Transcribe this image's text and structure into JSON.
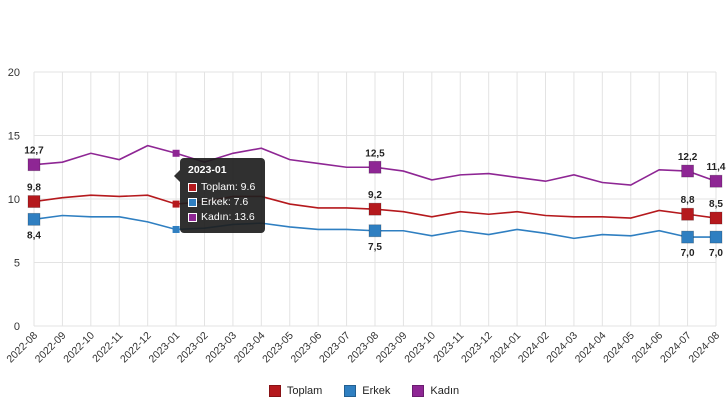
{
  "chart_data": {
    "type": "line",
    "categories": [
      "2022-08",
      "2022-09",
      "2022-10",
      "2022-11",
      "2022-12",
      "2023-01",
      "2023-02",
      "2023-03",
      "2023-04",
      "2023-05",
      "2023-06",
      "2023-07",
      "2023-08",
      "2023-09",
      "2023-10",
      "2023-11",
      "2023-12",
      "2024-01",
      "2024-02",
      "2024-03",
      "2024-04",
      "2024-05",
      "2024-06",
      "2024-07",
      "2024-08"
    ],
    "ylim": [
      0,
      20
    ],
    "yticks": [
      0,
      5,
      10,
      15,
      20
    ],
    "grid": true,
    "legend_position": "bottom",
    "series": [
      {
        "name": "Toplam",
        "color": "#b5191d",
        "values": [
          9.8,
          10.1,
          10.3,
          10.2,
          10.3,
          9.6,
          9.8,
          10.2,
          10.2,
          9.6,
          9.3,
          9.3,
          9.2,
          9.0,
          8.6,
          9.0,
          8.8,
          9.0,
          8.7,
          8.6,
          8.6,
          8.5,
          9.1,
          8.8,
          8.5
        ]
      },
      {
        "name": "Erkek",
        "color": "#2f7fc1",
        "values": [
          8.4,
          8.7,
          8.6,
          8.6,
          8.2,
          7.6,
          7.7,
          8.0,
          8.1,
          7.8,
          7.6,
          7.6,
          7.5,
          7.5,
          7.1,
          7.5,
          7.2,
          7.6,
          7.3,
          6.9,
          7.2,
          7.1,
          7.5,
          7.0,
          7.0
        ]
      },
      {
        "name": "Kadın",
        "color": "#8e2694",
        "values": [
          12.7,
          12.9,
          13.6,
          13.1,
          14.2,
          13.6,
          12.9,
          13.6,
          14.0,
          13.1,
          12.8,
          12.5,
          12.5,
          12.2,
          11.5,
          11.9,
          12.0,
          11.7,
          11.4,
          11.9,
          11.3,
          11.1,
          12.3,
          12.2,
          11.4
        ]
      }
    ],
    "point_labels": [
      {
        "series": 0,
        "index": 0,
        "text": "9,8"
      },
      {
        "series": 1,
        "index": 0,
        "text": "8,4"
      },
      {
        "series": 2,
        "index": 0,
        "text": "12,7"
      },
      {
        "series": 0,
        "index": 12,
        "text": "9,2"
      },
      {
        "series": 1,
        "index": 12,
        "text": "7,5"
      },
      {
        "series": 2,
        "index": 12,
        "text": "12,5"
      },
      {
        "series": 0,
        "index": 23,
        "text": "8,8"
      },
      {
        "series": 1,
        "index": 23,
        "text": "7,0"
      },
      {
        "series": 2,
        "index": 23,
        "text": "12,2"
      },
      {
        "series": 0,
        "index": 24,
        "text": "8,5"
      },
      {
        "series": 1,
        "index": 24,
        "text": "7,0"
      },
      {
        "series": 2,
        "index": 24,
        "text": "11,4"
      }
    ],
    "tooltip": {
      "title": "2023-01",
      "rows": [
        "Toplam: 9.6",
        "Erkek: 7.6",
        "Kadın: 13.6"
      ]
    }
  }
}
